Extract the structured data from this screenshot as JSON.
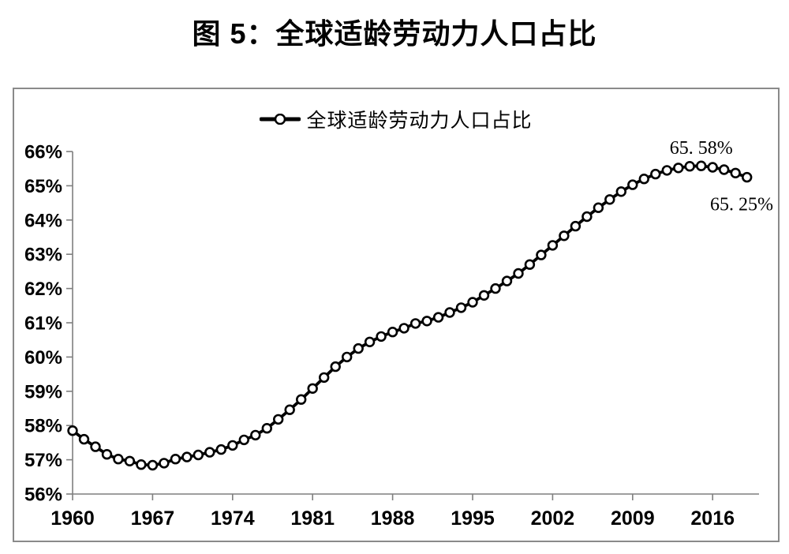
{
  "page": {
    "title": "图 5：全球适龄劳动力人口占比"
  },
  "legend": {
    "label": "全球适龄劳动力人口占比"
  },
  "colors": {
    "line": "#000000",
    "marker_fill": "#ffffff",
    "axis": "#7f7f7f",
    "frame_border": "#8a8a8a",
    "text": "#000000"
  },
  "chart_data": {
    "type": "line",
    "title": "图 5：全球适龄劳动力人口占比",
    "xlabel": "",
    "ylabel": "",
    "grid": false,
    "legend_position": "top-center",
    "marker": "open-circle",
    "ylim": [
      56,
      66
    ],
    "y_tick_labels": [
      "56%",
      "57%",
      "58%",
      "59%",
      "60%",
      "61%",
      "62%",
      "63%",
      "64%",
      "65%",
      "66%"
    ],
    "x_tick_years": [
      1960,
      1967,
      1974,
      1981,
      1988,
      1995,
      2002,
      2009,
      2016
    ],
    "x": [
      1960,
      1961,
      1962,
      1963,
      1964,
      1965,
      1966,
      1967,
      1968,
      1969,
      1970,
      1971,
      1972,
      1973,
      1974,
      1975,
      1976,
      1977,
      1978,
      1979,
      1980,
      1981,
      1982,
      1983,
      1984,
      1985,
      1986,
      1987,
      1988,
      1989,
      1990,
      1991,
      1992,
      1993,
      1994,
      1995,
      1996,
      1997,
      1998,
      1999,
      2000,
      2001,
      2002,
      2003,
      2004,
      2005,
      2006,
      2007,
      2008,
      2009,
      2010,
      2011,
      2012,
      2013,
      2014,
      2015,
      2016,
      2017,
      2018,
      2019
    ],
    "series": [
      {
        "name": "全球适龄劳动力人口占比",
        "values": [
          57.85,
          57.6,
          57.38,
          57.16,
          57.02,
          56.96,
          56.86,
          56.84,
          56.9,
          57.02,
          57.08,
          57.14,
          57.22,
          57.3,
          57.42,
          57.58,
          57.72,
          57.92,
          58.18,
          58.46,
          58.76,
          59.08,
          59.4,
          59.72,
          60.0,
          60.25,
          60.44,
          60.6,
          60.73,
          60.84,
          60.98,
          61.05,
          61.16,
          61.3,
          61.44,
          61.6,
          61.8,
          62.0,
          62.22,
          62.44,
          62.7,
          62.98,
          63.26,
          63.54,
          63.82,
          64.1,
          64.36,
          64.6,
          64.83,
          65.03,
          65.2,
          65.34,
          65.45,
          65.52,
          65.57,
          65.58,
          65.54,
          65.47,
          65.37,
          65.25
        ]
      }
    ],
    "annotations": [
      {
        "text": "65. 58%",
        "attach": "max"
      },
      {
        "text": "65. 25%",
        "attach": "last"
      }
    ]
  }
}
